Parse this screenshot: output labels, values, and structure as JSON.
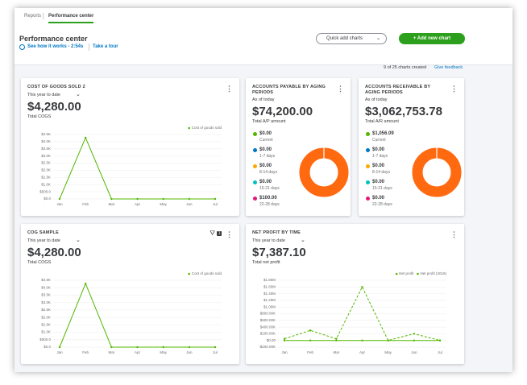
{
  "tabs": [
    "Reports",
    "Performance center"
  ],
  "header": {
    "title": "Performance center",
    "video_link": "See how it works - 2:54s",
    "tour_link": "Take a tour",
    "quick_add": "Quick add charts",
    "add_new": "+ Add new chart",
    "count": "9 of 25 charts created",
    "feedback": "Give feedback"
  },
  "cards": [
    {
      "title": "COST OF GOODS SOLD 2",
      "period": "This year to date",
      "amount": "$4,280.00",
      "amount_label": "Total COGS",
      "chart": {
        "type": "line",
        "categories": [
          "Jan",
          "Feb",
          "Mar",
          "Apr",
          "May",
          "Jun",
          "Jul"
        ],
        "series": [
          {
            "name": "Cost of goods sold",
            "color": "#53b700",
            "values": [
              0,
              4280,
              0,
              0,
              0,
              0,
              0
            ]
          }
        ],
        "ylim": [
          0,
          4500
        ],
        "yticks": [
          {
            "value": 0,
            "label": "$0.0"
          },
          {
            "value": 500,
            "label": "$500.0"
          },
          {
            "value": 1000,
            "label": "$1.0K"
          },
          {
            "value": 1500,
            "label": "$1.5K"
          },
          {
            "value": 2000,
            "label": "$2.0K"
          },
          {
            "value": 2500,
            "label": "$2.5K"
          },
          {
            "value": 3000,
            "label": "$3.0K"
          },
          {
            "value": 3500,
            "label": "$3.5K"
          },
          {
            "value": 4000,
            "label": "$4.0K"
          },
          {
            "value": 4500,
            "label": "$4.5K"
          }
        ]
      }
    },
    {
      "title": "ACCOUNTS PAYABLE BY AGING PERIODS",
      "period": "As of today",
      "amount": "$74,200.00",
      "amount_label": "Total A/P amount",
      "donut_color": "#ff6a10",
      "items": [
        {
          "amount": "$0.00",
          "label": "Current",
          "color": "#53b700"
        },
        {
          "amount": "$0.00",
          "label": "1-7 days",
          "color": "#0077c5"
        },
        {
          "amount": "$0.00",
          "label": "8-14 days",
          "color": "#ffa800"
        },
        {
          "amount": "$0.00",
          "label": "15-21 days",
          "color": "#00c1bf"
        },
        {
          "amount": "$100.00",
          "label": "22-28 days",
          "color": "#e6177a"
        }
      ]
    },
    {
      "title": "ACCOUNTS RECEIVABLE BY AGING PERIODS",
      "period": "As of today",
      "amount": "$3,062,753.78",
      "amount_label": "Total A/R amount",
      "donut_color": "#ff6a10",
      "items": [
        {
          "amount": "$1,056.09",
          "label": "Current",
          "color": "#53b700"
        },
        {
          "amount": "$0.00",
          "label": "1-7 days",
          "color": "#0077c5"
        },
        {
          "amount": "$0.00",
          "label": "8-14 days",
          "color": "#ffa800"
        },
        {
          "amount": "$0.00",
          "label": "15-21 days",
          "color": "#00c1bf"
        },
        {
          "amount": "$0.00",
          "label": "22-28 days",
          "color": "#e6177a"
        }
      ]
    },
    {
      "title": "COG SAMPLE",
      "period": "This year to date",
      "amount": "$4,280.00",
      "amount_label": "Total COGS",
      "filter_badge": "1",
      "chart": {
        "type": "line",
        "categories": [
          "Jan",
          "Feb",
          "Mar",
          "Apr",
          "May",
          "Jun",
          "Jul"
        ],
        "series": [
          {
            "name": "Cost of goods sold",
            "color": "#53b700",
            "values": [
              0,
              4280,
              0,
              0,
              0,
              0,
              0
            ]
          }
        ],
        "ylim": [
          0,
          4500
        ],
        "yticks": [
          {
            "value": 0,
            "label": "$0.0"
          },
          {
            "value": 500,
            "label": "$500.0"
          },
          {
            "value": 1000,
            "label": "$1.0K"
          },
          {
            "value": 1500,
            "label": "$1.5K"
          },
          {
            "value": 2000,
            "label": "$2.0K"
          },
          {
            "value": 2500,
            "label": "$2.5K"
          },
          {
            "value": 3000,
            "label": "$3.0K"
          },
          {
            "value": 3500,
            "label": "$3.5K"
          },
          {
            "value": 4000,
            "label": "$4.0K"
          },
          {
            "value": 4500,
            "label": "$4.5K"
          }
        ]
      }
    },
    {
      "title": "NET PROFIT BY TIME",
      "period": "This year to date",
      "amount": "$7,387.10",
      "amount_label": "Total net profit",
      "chart": {
        "type": "line",
        "categories": [
          "Jan",
          "Feb",
          "Mar",
          "Apr",
          "May",
          "Jun",
          "Jul"
        ],
        "series": [
          {
            "name": "Net profit",
            "color": "#53b700",
            "values": [
              0,
              0,
              0,
              0,
              0,
              0,
              0
            ]
          },
          {
            "name": "Net profit (2019)",
            "color": "#53b700",
            "dashed": true,
            "values": [
              50000,
              300000,
              50000,
              1600000,
              0,
              200000,
              0
            ]
          }
        ],
        "ylim": [
          -200000,
          1800000
        ],
        "yticks": [
          {
            "value": -200000,
            "label": "-$200.00K"
          },
          {
            "value": 0,
            "label": "$0.00"
          },
          {
            "value": 200000,
            "label": "$200.00K"
          },
          {
            "value": 400000,
            "label": "$400.00K"
          },
          {
            "value": 600000,
            "label": "$600.00K"
          },
          {
            "value": 800000,
            "label": "$800.00K"
          },
          {
            "value": 1000000,
            "label": "$1.00M"
          },
          {
            "value": 1200000,
            "label": "$1.20M"
          },
          {
            "value": 1400000,
            "label": "$1.40M"
          },
          {
            "value": 1600000,
            "label": "$1.60M"
          },
          {
            "value": 1800000,
            "label": "$1.80M"
          }
        ]
      }
    }
  ]
}
